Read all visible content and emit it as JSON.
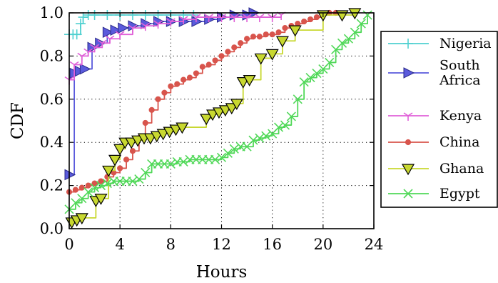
{
  "chart_data": {
    "type": "line",
    "title": "",
    "xlabel": "Hours",
    "ylabel": "CDF",
    "xlim": [
      0,
      24
    ],
    "ylim": [
      0,
      1
    ],
    "xticks": [
      0,
      4,
      8,
      12,
      16,
      20,
      24
    ],
    "yticks": [
      0.0,
      0.2,
      0.4,
      0.6,
      0.8,
      1.0
    ],
    "x_tick_labels": [
      "0",
      "4",
      "8",
      "12",
      "16",
      "20",
      "24"
    ],
    "y_tick_labels": [
      "0.0",
      "0.2",
      "0.4",
      "0.6",
      "0.8",
      "1.0"
    ],
    "grid": "dotted",
    "legend_position": "right",
    "series": [
      {
        "name": "Nigeria",
        "color": "#4fd0d0",
        "marker": "plus",
        "points": [
          [
            0,
            0.9
          ],
          [
            0.3,
            0.9
          ],
          [
            0.6,
            0.9
          ],
          [
            0.9,
            0.95
          ],
          [
            1.1,
            0.98
          ],
          [
            1.5,
            0.99
          ],
          [
            2,
            0.99
          ],
          [
            3,
            0.99
          ],
          [
            4,
            0.99
          ],
          [
            5,
            0.99
          ],
          [
            6,
            0.99
          ],
          [
            7,
            0.99
          ],
          [
            8,
            0.99
          ],
          [
            9,
            0.99
          ],
          [
            9.8,
            0.99
          ]
        ]
      },
      {
        "name": "South Africa",
        "color": "#5a5adc",
        "marker": "triangle-right",
        "points": [
          [
            0,
            0.25
          ],
          [
            0.4,
            0.72
          ],
          [
            0.8,
            0.73
          ],
          [
            1.2,
            0.74
          ],
          [
            1.8,
            0.84
          ],
          [
            2.4,
            0.86
          ],
          [
            3,
            0.91
          ],
          [
            3.6,
            0.92
          ],
          [
            4.2,
            0.93
          ],
          [
            5,
            0.94
          ],
          [
            6,
            0.95
          ],
          [
            7,
            0.96
          ],
          [
            8,
            0.96
          ],
          [
            9,
            0.96
          ],
          [
            10,
            0.96
          ],
          [
            11,
            0.97
          ],
          [
            12,
            0.98
          ],
          [
            13,
            0.99
          ],
          [
            14,
            0.99
          ],
          [
            14.5,
            1.0
          ]
        ]
      },
      {
        "name": "Kenya",
        "color": "#e060d8",
        "marker": "tri-down",
        "points": [
          [
            0,
            0.69
          ],
          [
            0.4,
            0.76
          ],
          [
            1,
            0.8
          ],
          [
            1.5,
            0.82
          ],
          [
            2,
            0.84
          ],
          [
            2.6,
            0.86
          ],
          [
            3.2,
            0.88
          ],
          [
            4,
            0.9
          ],
          [
            5,
            0.93
          ],
          [
            6,
            0.94
          ],
          [
            7,
            0.95
          ],
          [
            8,
            0.96
          ],
          [
            9,
            0.97
          ],
          [
            10,
            0.98
          ],
          [
            11,
            0.98
          ],
          [
            12,
            0.98
          ],
          [
            13,
            0.98
          ],
          [
            14,
            0.98
          ],
          [
            15,
            0.98
          ],
          [
            16,
            0.98
          ],
          [
            16.7,
            0.99
          ]
        ]
      },
      {
        "name": "China",
        "color": "#d8544c",
        "marker": "circle",
        "points": [
          [
            0,
            0.17
          ],
          [
            0.5,
            0.18
          ],
          [
            1,
            0.19
          ],
          [
            1.5,
            0.2
          ],
          [
            2,
            0.21
          ],
          [
            2.5,
            0.22
          ],
          [
            3,
            0.24
          ],
          [
            3.5,
            0.26
          ],
          [
            4,
            0.28
          ],
          [
            4.5,
            0.32
          ],
          [
            5,
            0.36
          ],
          [
            5.5,
            0.42
          ],
          [
            6,
            0.49
          ],
          [
            6.5,
            0.55
          ],
          [
            7,
            0.6
          ],
          [
            7.5,
            0.63
          ],
          [
            8,
            0.66
          ],
          [
            8.5,
            0.67
          ],
          [
            9,
            0.69
          ],
          [
            9.5,
            0.7
          ],
          [
            10,
            0.72
          ],
          [
            10.5,
            0.75
          ],
          [
            11,
            0.76
          ],
          [
            11.5,
            0.78
          ],
          [
            12,
            0.8
          ],
          [
            12.5,
            0.82
          ],
          [
            13,
            0.84
          ],
          [
            13.5,
            0.86
          ],
          [
            14,
            0.88
          ],
          [
            14.5,
            0.89
          ],
          [
            15,
            0.89
          ],
          [
            15.5,
            0.9
          ],
          [
            16,
            0.9
          ],
          [
            16.5,
            0.91
          ],
          [
            17,
            0.93
          ],
          [
            17.5,
            0.94
          ],
          [
            18,
            0.95
          ],
          [
            18.5,
            0.96
          ],
          [
            19,
            0.97
          ],
          [
            19.5,
            0.98
          ],
          [
            20,
            0.99
          ],
          [
            20.5,
            1.0
          ],
          [
            21,
            1.0
          ]
        ]
      },
      {
        "name": "Ghana",
        "color": "#c8d830",
        "marker": "triangle-down",
        "points": [
          [
            0.2,
            0.03
          ],
          [
            0.6,
            0.04
          ],
          [
            1,
            0.05
          ],
          [
            2.1,
            0.13
          ],
          [
            2.5,
            0.14
          ],
          [
            3.1,
            0.27
          ],
          [
            3.6,
            0.32
          ],
          [
            4,
            0.37
          ],
          [
            4.4,
            0.4
          ],
          [
            4.9,
            0.4
          ],
          [
            5.4,
            0.41
          ],
          [
            5.9,
            0.42
          ],
          [
            6.4,
            0.42
          ],
          [
            6.9,
            0.43
          ],
          [
            7.4,
            0.44
          ],
          [
            7.9,
            0.45
          ],
          [
            8.4,
            0.46
          ],
          [
            8.9,
            0.47
          ],
          [
            10.8,
            0.51
          ],
          [
            11.3,
            0.53
          ],
          [
            11.8,
            0.54
          ],
          [
            12.3,
            0.55
          ],
          [
            12.8,
            0.56
          ],
          [
            13.2,
            0.58
          ],
          [
            13.7,
            0.68
          ],
          [
            14.2,
            0.69
          ],
          [
            15.1,
            0.79
          ],
          [
            16,
            0.81
          ],
          [
            16.8,
            0.87
          ],
          [
            17.8,
            0.92
          ],
          [
            20,
            0.99
          ],
          [
            21.5,
            0.99
          ],
          [
            22.5,
            1.0
          ]
        ]
      },
      {
        "name": "Egypt",
        "color": "#50d858",
        "marker": "x",
        "points": [
          [
            0,
            0.09
          ],
          [
            0.5,
            0.12
          ],
          [
            1,
            0.14
          ],
          [
            1.5,
            0.17
          ],
          [
            2,
            0.19
          ],
          [
            2.5,
            0.2
          ],
          [
            3,
            0.21
          ],
          [
            3.5,
            0.22
          ],
          [
            4,
            0.22
          ],
          [
            4.5,
            0.22
          ],
          [
            5,
            0.22
          ],
          [
            5.5,
            0.23
          ],
          [
            6,
            0.26
          ],
          [
            6.5,
            0.3
          ],
          [
            7,
            0.3
          ],
          [
            7.5,
            0.3
          ],
          [
            8,
            0.3
          ],
          [
            8.5,
            0.31
          ],
          [
            9,
            0.31
          ],
          [
            9.5,
            0.32
          ],
          [
            10,
            0.32
          ],
          [
            10.5,
            0.32
          ],
          [
            11,
            0.32
          ],
          [
            11.5,
            0.32
          ],
          [
            12,
            0.33
          ],
          [
            12.5,
            0.35
          ],
          [
            13,
            0.37
          ],
          [
            13.5,
            0.38
          ],
          [
            14,
            0.38
          ],
          [
            14.5,
            0.41
          ],
          [
            15,
            0.42
          ],
          [
            15.5,
            0.43
          ],
          [
            16,
            0.44
          ],
          [
            16.5,
            0.47
          ],
          [
            17,
            0.48
          ],
          [
            17.5,
            0.52
          ],
          [
            18,
            0.6
          ],
          [
            18.5,
            0.68
          ],
          [
            19,
            0.7
          ],
          [
            19.5,
            0.72
          ],
          [
            20,
            0.74
          ],
          [
            20.5,
            0.77
          ],
          [
            21,
            0.83
          ],
          [
            21.5,
            0.86
          ],
          [
            22,
            0.88
          ],
          [
            22.5,
            0.91
          ],
          [
            23,
            0.95
          ],
          [
            23.5,
            0.99
          ]
        ]
      }
    ],
    "legend": [
      {
        "label_lines": [
          "Nigeria"
        ]
      },
      {
        "label_lines": [
          "South",
          "Africa"
        ]
      },
      {
        "label_lines": [
          "Kenya"
        ]
      },
      {
        "label_lines": [
          "China"
        ]
      },
      {
        "label_lines": [
          "Ghana"
        ]
      },
      {
        "label_lines": [
          "Egypt"
        ]
      }
    ]
  }
}
